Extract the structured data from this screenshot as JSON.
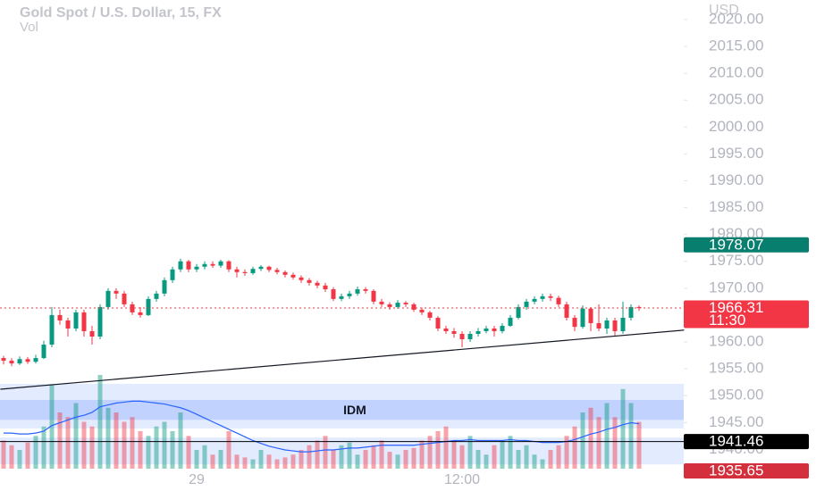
{
  "chart_data": {
    "type": "candlestick",
    "title": "Gold Spot / U.S. Dollar, 15, FX",
    "subtitle": "Vol",
    "currency": "USD",
    "categories": [
      null,
      null,
      null,
      null,
      null,
      null,
      null,
      null,
      null,
      null,
      null,
      null,
      null,
      null,
      null,
      null,
      null,
      null,
      null,
      null,
      null,
      null,
      null,
      null,
      "29",
      null,
      null,
      null,
      null,
      null,
      null,
      null,
      null,
      null,
      null,
      null,
      null,
      null,
      null,
      null,
      null,
      null,
      null,
      null,
      null,
      null,
      null,
      null,
      null,
      null,
      null,
      null,
      null,
      null,
      null,
      null,
      null,
      "12:00",
      null,
      null,
      null,
      null,
      null,
      null,
      null,
      null,
      null,
      null,
      null,
      null,
      null,
      null,
      null,
      null,
      null,
      null,
      null,
      null,
      null,
      null
    ],
    "open": [
      1957.0,
      1956.5,
      1956.0,
      1956.8,
      1956.3,
      1957.0,
      1959.5,
      1965.0,
      1964.0,
      1962.5,
      1965.5,
      1962.0,
      1961.0,
      1966.5,
      1969.5,
      1969.0,
      1967.0,
      1965.5,
      1965.0,
      1968.0,
      1969.0,
      1971.5,
      1973.5,
      1975.0,
      1973.5,
      1974.0,
      1974.5,
      1974.2,
      1975.0,
      1973.5,
      1973.0,
      1972.8,
      1973.6,
      1974.0,
      1973.4,
      1973.0,
      1972.5,
      1972.0,
      1971.5,
      1971.0,
      1970.5,
      1969.8,
      1968.0,
      1968.5,
      1969.0,
      1969.8,
      1969.5,
      1967.5,
      1967.0,
      1966.5,
      1967.3,
      1967.0,
      1966.0,
      1965.5,
      1964.5,
      1962.5,
      1962.0,
      1961.5,
      1960.5,
      1961.5,
      1962.0,
      1962.5,
      1962.0,
      1963.0,
      1964.5,
      1966.5,
      1967.5,
      1968.0,
      1968.5,
      1968.2,
      1967.0,
      1964.5,
      1962.8,
      1966.2,
      1963.5,
      1962.5,
      1964.0,
      1962.0,
      1964.5,
      1966.5
    ],
    "high": [
      1957.4,
      1957.0,
      1957.3,
      1957.2,
      1957.6,
      1960.2,
      1966.5,
      1966.0,
      1964.5,
      1966.0,
      1966.0,
      1963.0,
      1967.0,
      1970.0,
      1970.0,
      1969.5,
      1967.5,
      1966.5,
      1968.5,
      1969.5,
      1972.0,
      1974.0,
      1975.5,
      1975.3,
      1974.5,
      1975.0,
      1975.0,
      1975.3,
      1975.2,
      1974.0,
      1973.5,
      1974.0,
      1974.3,
      1974.2,
      1973.8,
      1973.3,
      1972.9,
      1972.4,
      1971.9,
      1971.4,
      1971.0,
      1970.2,
      1969.0,
      1969.5,
      1970.3,
      1970.2,
      1969.8,
      1968.0,
      1967.4,
      1967.8,
      1967.6,
      1967.3,
      1966.4,
      1965.8,
      1964.8,
      1963.0,
      1962.6,
      1962.0,
      1962.0,
      1962.6,
      1963.0,
      1963.0,
      1963.5,
      1965.0,
      1967.0,
      1968.0,
      1968.5,
      1969.0,
      1969.0,
      1968.6,
      1967.5,
      1965.0,
      1966.8,
      1966.5,
      1967.0,
      1964.5,
      1964.5,
      1967.5,
      1967.0,
      1966.8
    ],
    "low": [
      1955.8,
      1955.5,
      1955.7,
      1955.9,
      1956.0,
      1956.8,
      1959.0,
      1963.2,
      1961.0,
      1962.0,
      1961.0,
      1959.5,
      1960.5,
      1966.0,
      1968.0,
      1966.5,
      1965.0,
      1964.5,
      1964.8,
      1967.5,
      1968.5,
      1971.0,
      1973.0,
      1973.0,
      1973.0,
      1973.5,
      1973.8,
      1973.8,
      1973.0,
      1972.0,
      1972.3,
      1972.5,
      1973.2,
      1973.0,
      1972.6,
      1972.0,
      1971.6,
      1971.0,
      1970.5,
      1970.0,
      1969.3,
      1967.6,
      1967.6,
      1968.0,
      1968.6,
      1969.0,
      1967.0,
      1966.5,
      1966.0,
      1966.2,
      1966.5,
      1965.6,
      1965.0,
      1964.0,
      1962.0,
      1961.5,
      1960.8,
      1959.0,
      1960.0,
      1961.0,
      1961.6,
      1961.0,
      1961.6,
      1962.8,
      1964.2,
      1966.0,
      1967.0,
      1967.5,
      1967.6,
      1966.5,
      1964.0,
      1962.0,
      1962.5,
      1962.0,
      1962.0,
      1961.5,
      1961.2,
      1961.5,
      1964.0,
      1965.8
    ],
    "close": [
      1956.5,
      1956.0,
      1956.8,
      1956.3,
      1957.0,
      1959.5,
      1965.0,
      1964.0,
      1962.5,
      1965.5,
      1962.0,
      1961.0,
      1966.5,
      1969.5,
      1969.0,
      1967.0,
      1965.5,
      1965.0,
      1968.0,
      1969.0,
      1971.5,
      1973.5,
      1975.0,
      1973.5,
      1974.0,
      1974.5,
      1974.2,
      1975.0,
      1973.5,
      1973.0,
      1972.8,
      1973.6,
      1974.0,
      1973.4,
      1973.0,
      1972.5,
      1972.0,
      1971.5,
      1971.0,
      1970.5,
      1969.8,
      1968.0,
      1968.5,
      1969.0,
      1969.8,
      1969.5,
      1967.5,
      1967.0,
      1966.5,
      1967.3,
      1967.0,
      1966.0,
      1965.5,
      1964.5,
      1962.5,
      1962.0,
      1961.5,
      1960.5,
      1961.5,
      1962.0,
      1962.5,
      1962.0,
      1963.0,
      1964.5,
      1966.5,
      1967.5,
      1968.0,
      1968.5,
      1968.2,
      1967.0,
      1964.5,
      1962.8,
      1966.2,
      1963.5,
      1962.5,
      1964.0,
      1962.0,
      1964.5,
      1966.5,
      1966.31
    ],
    "volume": [
      30,
      25,
      20,
      28,
      35,
      45,
      90,
      60,
      55,
      70,
      50,
      45,
      100,
      65,
      60,
      50,
      55,
      40,
      35,
      45,
      50,
      40,
      60,
      35,
      20,
      25,
      15,
      20,
      40,
      15,
      12,
      10,
      20,
      15,
      10,
      12,
      15,
      20,
      25,
      30,
      35,
      20,
      25,
      28,
      15,
      20,
      25,
      30,
      18,
      15,
      20,
      22,
      30,
      35,
      40,
      45,
      30,
      25,
      35,
      20,
      15,
      25,
      30,
      35,
      20,
      25,
      15,
      10,
      20,
      25,
      35,
      45,
      60,
      65,
      55,
      70,
      55,
      85,
      70,
      50
    ],
    "volume_ma": [
      38,
      38,
      37,
      37,
      38,
      40,
      46,
      49,
      52,
      55,
      57,
      60,
      66,
      68,
      70,
      71,
      72,
      72,
      71,
      70,
      69,
      67,
      65,
      62,
      58,
      54,
      50,
      46,
      42,
      38,
      34,
      30,
      27,
      24,
      22,
      20,
      19,
      18,
      18,
      19,
      20,
      20,
      21,
      22,
      22,
      23,
      24,
      25,
      25,
      25,
      25,
      25,
      26,
      27,
      28,
      29,
      30,
      30,
      31,
      30,
      30,
      30,
      30,
      31,
      30,
      30,
      29,
      28,
      28,
      28,
      29,
      31,
      34,
      37,
      39,
      42,
      44,
      47,
      49,
      48
    ],
    "up_color": "#089981",
    "down_color": "#f23645",
    "ma_color": "#2962ff",
    "ylim": [
      1932.25,
      2023.65
    ],
    "yticks": [
      {
        "value": 1940,
        "label": "1940.00"
      },
      {
        "value": 1945,
        "label": "1945.00"
      },
      {
        "value": 1950,
        "label": "1950.00"
      },
      {
        "value": 1955,
        "label": "1955.00"
      },
      {
        "value": 1960,
        "label": "1960.00"
      },
      {
        "value": 1965,
        "label": "1965.00"
      },
      {
        "value": 1970,
        "label": "1970.00"
      },
      {
        "value": 1975,
        "label": "1975.00"
      },
      {
        "value": 1980,
        "label": "1980.00"
      },
      {
        "value": 1985,
        "label": "1985.00"
      },
      {
        "value": 1990,
        "label": "1990.00"
      },
      {
        "value": 1995,
        "label": "1995.00"
      },
      {
        "value": 2000,
        "label": "2000.00"
      },
      {
        "value": 2005,
        "label": "2005.00"
      },
      {
        "value": 2010,
        "label": "2010.00"
      },
      {
        "value": 2015,
        "label": "2015.00"
      },
      {
        "value": 2020,
        "label": "2020.00"
      }
    ],
    "zones": [
      {
        "high": 1952.2,
        "low": 1943.9
      },
      {
        "high": 1949.2,
        "low": 1945.5,
        "label": "IDM"
      },
      {
        "high": 1942.2,
        "low": 1937.2
      }
    ],
    "trendline": {
      "x": [
        -0.4,
        84.6
      ],
      "y": [
        1951.2,
        1962.2
      ]
    },
    "price_tags": [
      {
        "value": 1978.07,
        "color": "#087f6e"
      },
      {
        "value": 1966.31,
        "color": "#f23645",
        "countdown": "11:30",
        "line": "dotted"
      },
      {
        "value": 1941.46,
        "color": "#000000",
        "line": "solid"
      },
      {
        "value": 1935.65,
        "color": "#d32f3c"
      }
    ]
  }
}
